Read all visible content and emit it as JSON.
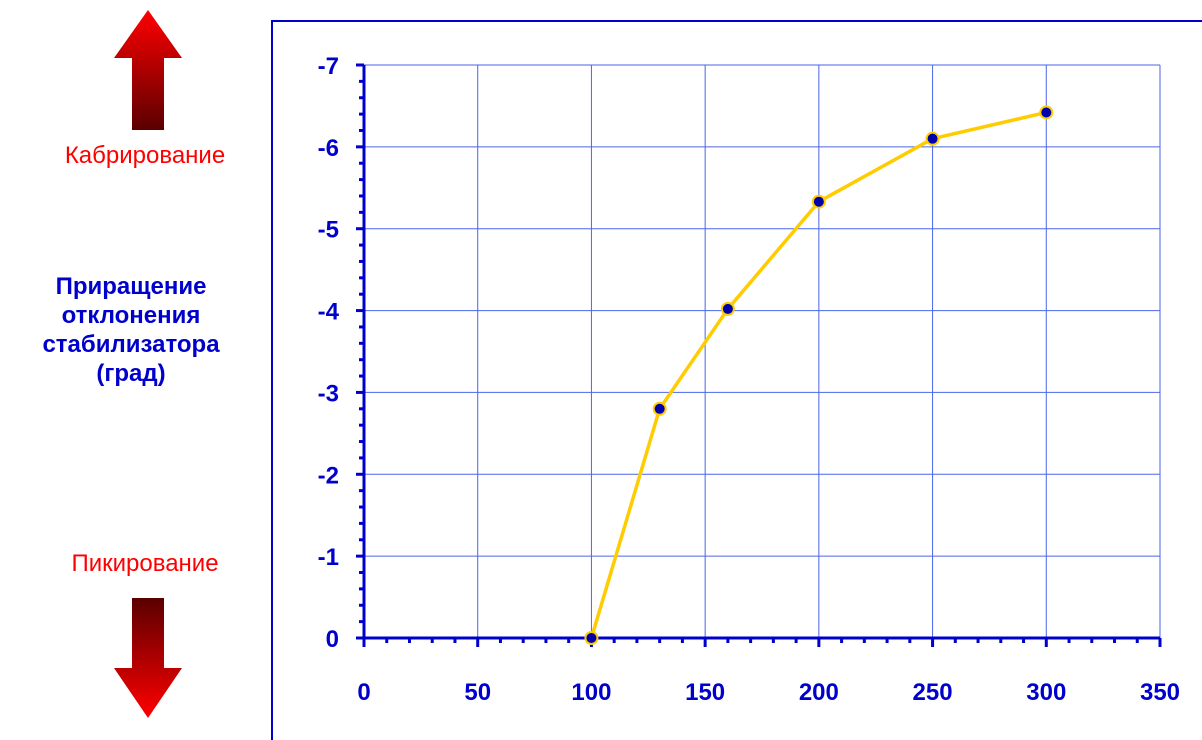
{
  "labels": {
    "pitch_up": "Кабрирование",
    "pitch_down": "Пикирование",
    "ylabel_lines": [
      "Приращение",
      "отклонения",
      "стабилизатора",
      "(град)"
    ]
  },
  "colors": {
    "axis": "#0000cc",
    "grid": "#4a66e8",
    "line": "#ffcc00",
    "marker_fill": "#0000aa",
    "marker_edge": "#ffcc00",
    "tick_text": "#0000cc",
    "arrow_top": "#ff0000",
    "arrow_bottom": "#5a0000"
  },
  "chart_data": {
    "type": "line",
    "xlabel": "",
    "ylabel": "Приращение отклонения стабилизатора (град)",
    "xlim": [
      0,
      350
    ],
    "ylim": [
      0,
      -7
    ],
    "y_axis_inverted": true,
    "grid": true,
    "x_ticks": [
      0,
      50,
      100,
      150,
      200,
      250,
      300,
      350
    ],
    "y_ticks": [
      0,
      -1,
      -2,
      -3,
      -4,
      -5,
      -6,
      -7
    ],
    "series": [
      {
        "x": [
          100,
          130,
          160,
          200,
          250,
          300
        ],
        "y": [
          0,
          -2.8,
          -4.02,
          -5.33,
          -6.1,
          -6.42
        ]
      }
    ]
  }
}
